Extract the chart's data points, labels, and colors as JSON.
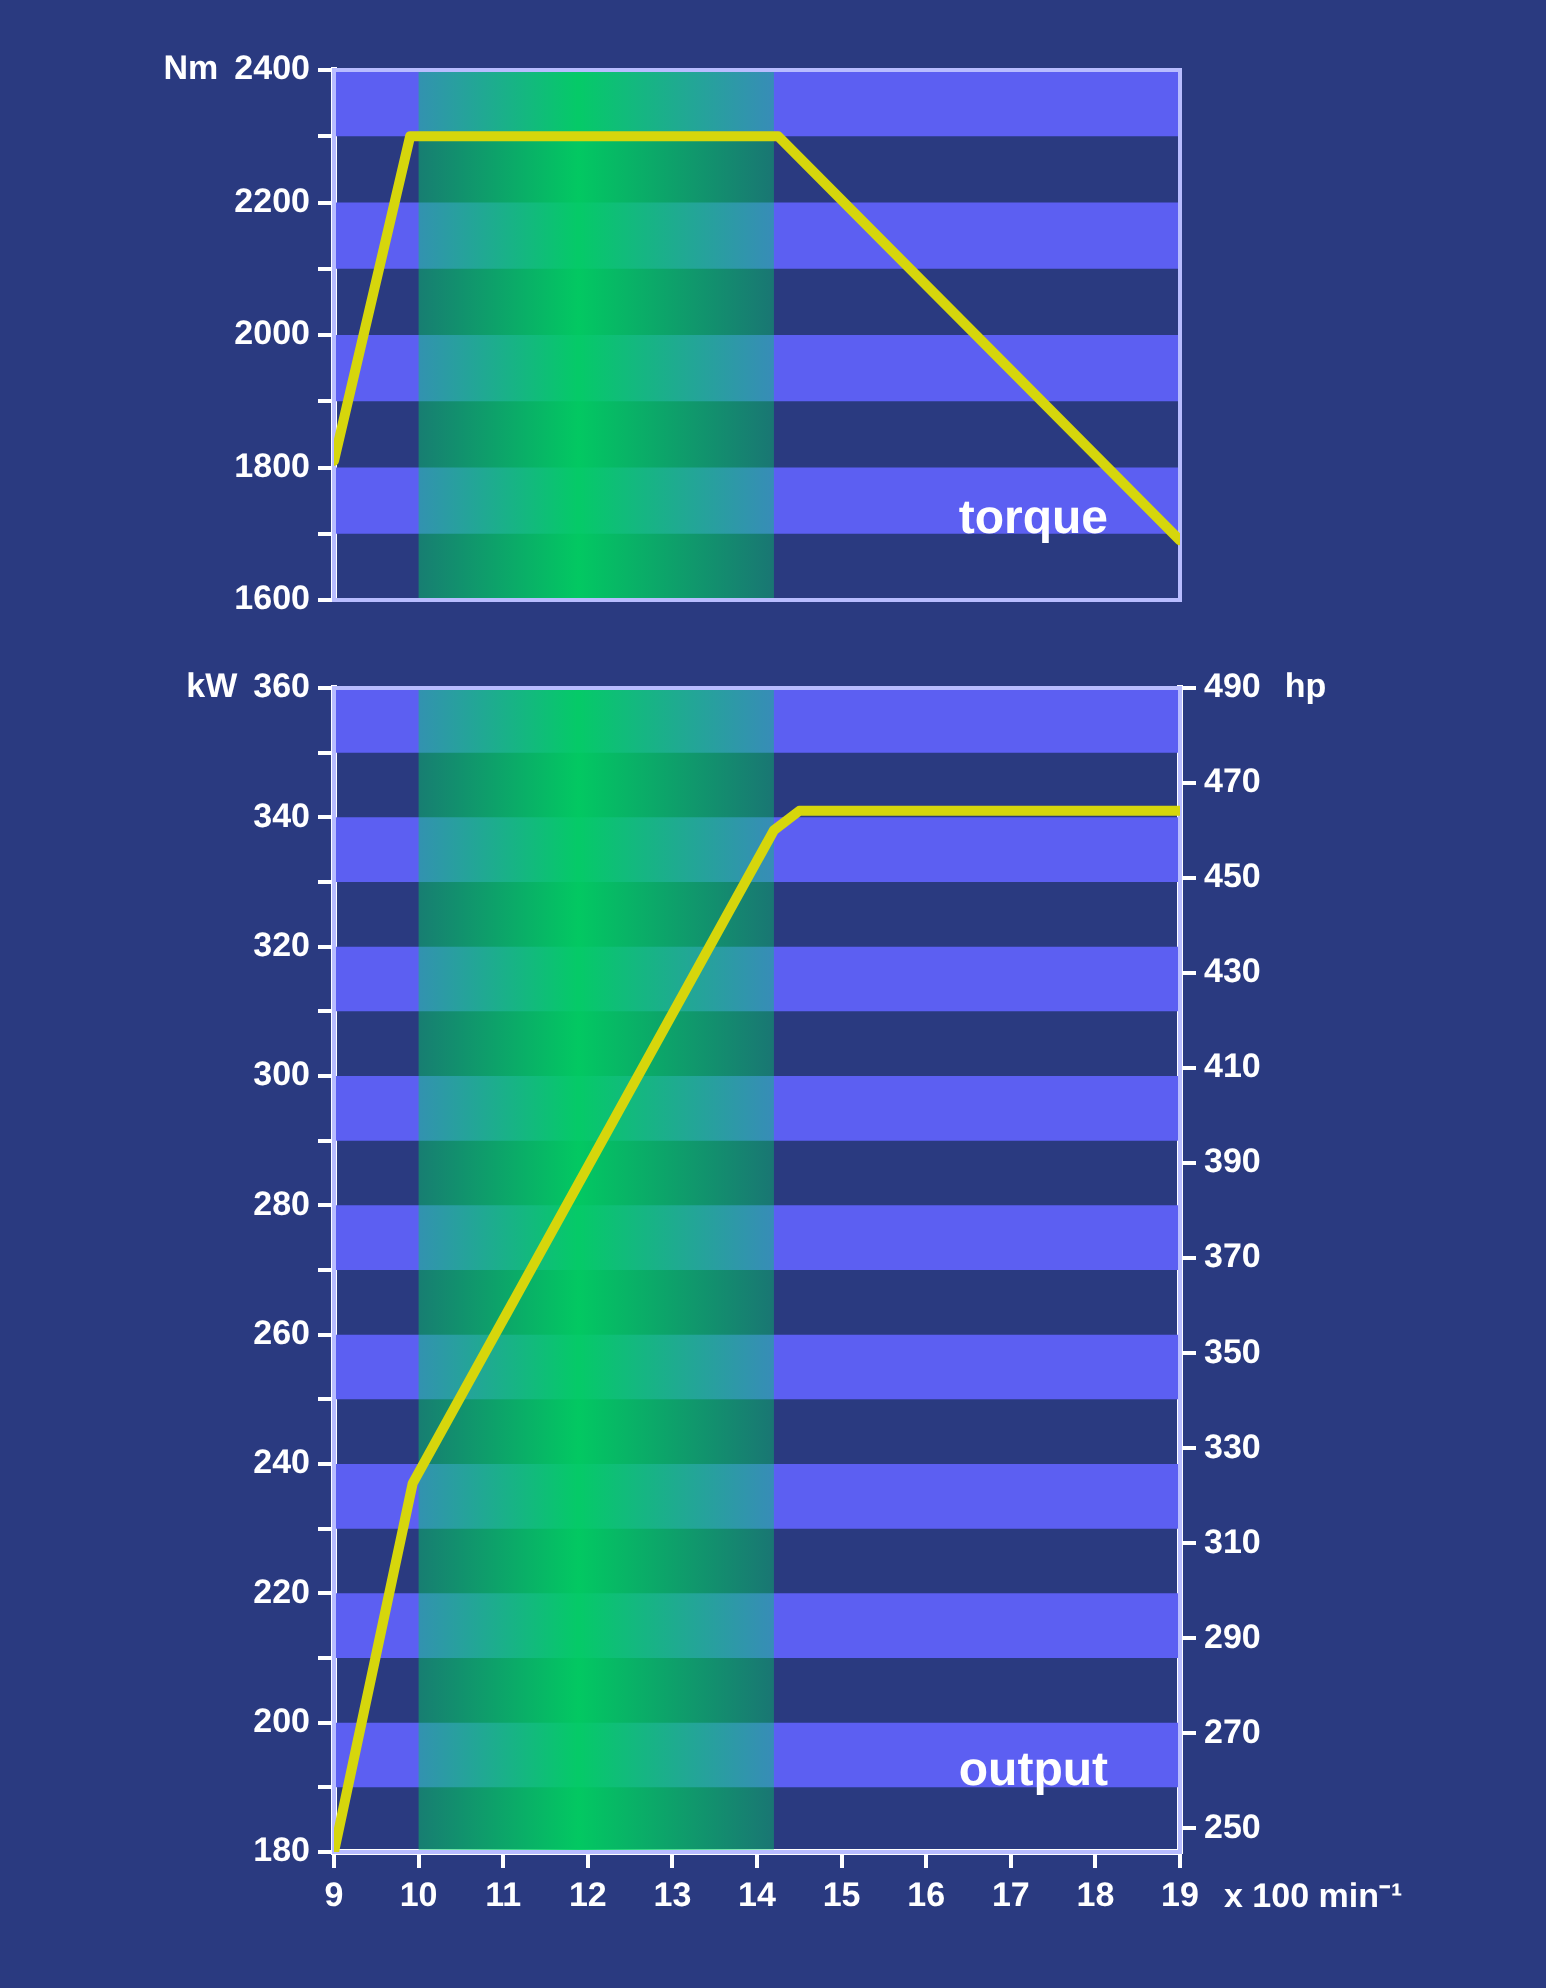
{
  "chart_data": [
    {
      "type": "line",
      "ylabel": "Nm",
      "annotations": [
        "torque"
      ],
      "x": [
        9,
        9.9,
        14.25,
        19
      ],
      "series": [
        {
          "color": "#d6d60c",
          "values": [
            1810,
            2300,
            2300,
            1690
          ]
        }
      ],
      "xlim": [
        9,
        19
      ],
      "xticks": [
        9,
        10,
        11,
        12,
        13,
        14,
        15,
        16,
        17,
        18,
        19
      ],
      "ylim": [
        1600,
        2400
      ],
      "yticks": [
        1600,
        {
          "value": 1700,
          "label": null
        },
        1800,
        {
          "value": 1900,
          "label": null
        },
        2000,
        {
          "value": 2100,
          "label": null
        },
        2200,
        {
          "value": 2300,
          "label": null
        },
        2400
      ],
      "tick_labels": "y",
      "grid": false,
      "legend": false,
      "marker": "none",
      "line_style": "solid",
      "bands": [
        {
          "axis": "y",
          "from": 2300,
          "to": 2400,
          "color": "#5c5ff2"
        },
        {
          "axis": "y",
          "from": 2100,
          "to": 2200,
          "color": "#5c5ff2"
        },
        {
          "axis": "y",
          "from": 1900,
          "to": 2000,
          "color": "#5c5ff2"
        },
        {
          "axis": "y",
          "from": 1700,
          "to": 1800,
          "color": "#5c5ff2"
        },
        {
          "axis": "x",
          "from": 10,
          "to": 14.2,
          "color": "#00d060"
        }
      ]
    },
    {
      "type": "line",
      "ylabel": "kW",
      "y2label": "hp",
      "xlabel": "x 100 min⁻¹",
      "annotations": [
        "output"
      ],
      "x": [
        9,
        9.93,
        14.2,
        14.5,
        19
      ],
      "series": [
        {
          "color": "#d6d60c",
          "values": [
            180,
            237,
            338,
            341,
            341
          ]
        }
      ],
      "xlim": [
        9,
        19
      ],
      "xticks": [
        9,
        10,
        11,
        12,
        13,
        14,
        15,
        16,
        17,
        18,
        19
      ],
      "ylim": [
        180,
        360
      ],
      "yticks": [
        180,
        {
          "value": 190,
          "label": null
        },
        200,
        {
          "value": 210,
          "label": null
        },
        220,
        {
          "value": 230,
          "label": null
        },
        240,
        {
          "value": 250,
          "label": null
        },
        260,
        {
          "value": 270,
          "label": null
        },
        280,
        {
          "value": 290,
          "label": null
        },
        300,
        {
          "value": 310,
          "label": null
        },
        320,
        {
          "value": 330,
          "label": null
        },
        340,
        {
          "value": 350,
          "label": null
        },
        360
      ],
      "y2lim": [
        245,
        490
      ],
      "y2ticks": [
        250,
        270,
        290,
        310,
        330,
        350,
        370,
        390,
        410,
        430,
        450,
        470,
        490
      ],
      "grid": false,
      "legend": false,
      "marker": "none",
      "line_style": "solid",
      "bands": [
        {
          "axis": "y",
          "from": 350,
          "to": 360,
          "color": "#5c5ff2"
        },
        {
          "axis": "y",
          "from": 330,
          "to": 340,
          "color": "#5c5ff2"
        },
        {
          "axis": "y",
          "from": 310,
          "to": 320,
          "color": "#5c5ff2"
        },
        {
          "axis": "y",
          "from": 290,
          "to": 300,
          "color": "#5c5ff2"
        },
        {
          "axis": "y",
          "from": 270,
          "to": 280,
          "color": "#5c5ff2"
        },
        {
          "axis": "y",
          "from": 250,
          "to": 260,
          "color": "#5c5ff2"
        },
        {
          "axis": "y",
          "from": 230,
          "to": 240,
          "color": "#5c5ff2"
        },
        {
          "axis": "y",
          "from": 210,
          "to": 220,
          "color": "#5c5ff2"
        },
        {
          "axis": "y",
          "from": 190,
          "to": 200,
          "color": "#5c5ff2"
        },
        {
          "axis": "x",
          "from": 10,
          "to": 14.2,
          "color": "#00d060"
        }
      ]
    }
  ]
}
